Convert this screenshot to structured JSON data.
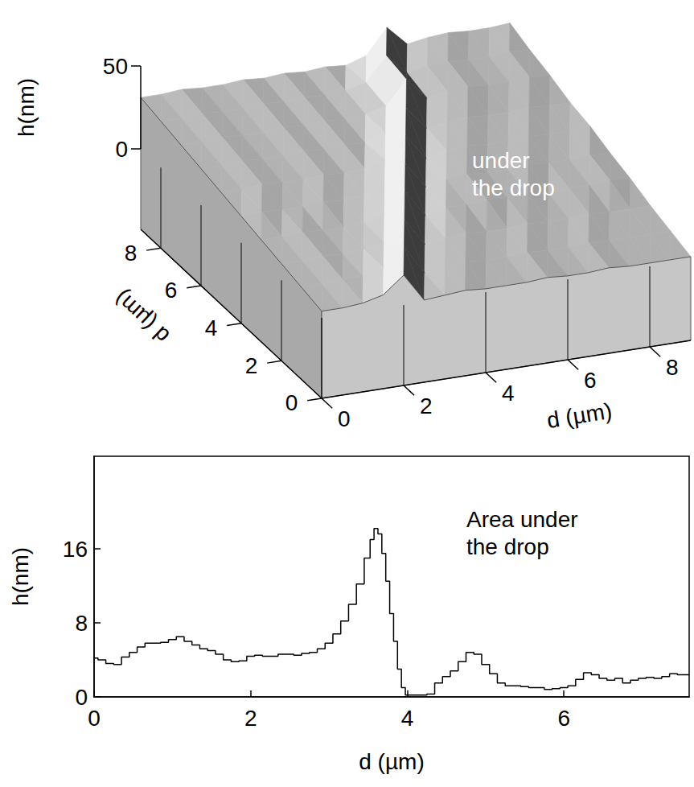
{
  "chart_data": [
    {
      "type": "surface",
      "xlabel": "d (µm)",
      "ylabel": "d (µm)",
      "zlabel": "h(nm)",
      "annotation": "under the drop",
      "x": [
        0,
        0.5,
        1,
        1.5,
        2,
        2.5,
        3,
        3.5,
        4,
        4.5,
        5,
        5.5,
        6,
        6.5,
        7,
        7.5,
        8,
        8.5,
        9
      ],
      "y": [
        0,
        1,
        2,
        3,
        4,
        5,
        6,
        7,
        8,
        9
      ],
      "heights": [
        [
          4,
          4,
          5,
          8,
          18,
          1,
          2,
          3,
          2,
          2,
          2,
          3,
          2,
          2,
          3,
          2,
          2,
          2,
          2
        ],
        [
          7,
          7,
          8,
          8,
          11,
          22,
          4,
          6,
          7,
          6,
          6,
          7,
          6,
          6,
          7,
          6,
          6,
          6,
          6
        ],
        [
          10,
          10,
          11,
          10,
          11,
          13,
          25,
          8,
          10,
          11,
          10,
          10,
          11,
          10,
          10,
          11,
          10,
          10,
          10
        ],
        [
          13,
          13,
          14,
          13,
          13,
          14,
          17,
          29,
          12,
          15,
          15,
          16,
          15,
          15,
          14,
          15,
          15,
          16,
          15
        ],
        [
          16,
          17,
          16,
          16,
          17,
          16,
          17,
          20,
          32,
          16,
          19,
          20,
          19,
          19,
          20,
          19,
          19,
          20,
          19
        ],
        [
          19,
          19,
          20,
          19,
          19,
          20,
          19,
          20,
          23,
          36,
          20,
          23,
          24,
          23,
          23,
          24,
          23,
          23,
          24
        ],
        [
          22,
          22,
          23,
          22,
          22,
          23,
          22,
          23,
          22,
          26,
          39,
          25,
          27,
          28,
          27,
          27,
          28,
          27,
          27
        ],
        [
          25,
          25,
          26,
          25,
          25,
          26,
          25,
          26,
          25,
          26,
          29,
          43,
          30,
          32,
          33,
          32,
          32,
          33,
          32
        ],
        [
          28,
          28,
          29,
          28,
          28,
          29,
          28,
          29,
          28,
          29,
          32,
          46,
          34,
          36,
          37,
          36,
          36,
          37,
          36
        ],
        [
          31,
          31,
          32,
          31,
          31,
          32,
          31,
          32,
          31,
          32,
          31,
          35,
          50,
          38,
          40,
          41,
          40,
          40,
          41
        ]
      ],
      "xlim": [
        0,
        9
      ],
      "ylim": [
        0,
        9
      ],
      "zlim": [
        0,
        50
      ],
      "xticks": [
        0,
        2,
        4,
        6,
        8
      ],
      "yticks": [
        0,
        2,
        4,
        6,
        8
      ],
      "zticks": [
        0,
        50
      ]
    },
    {
      "type": "line",
      "xlabel": "d (µm)",
      "ylabel": "h(nm)",
      "annotation": "Area under the drop",
      "x": [
        0,
        0.1,
        0.2,
        0.3,
        0.4,
        0.5,
        0.6,
        0.7,
        0.8,
        0.9,
        1.0,
        1.1,
        1.2,
        1.3,
        1.4,
        1.5,
        1.6,
        1.7,
        1.8,
        1.9,
        2.0,
        2.1,
        2.2,
        2.3,
        2.4,
        2.5,
        2.6,
        2.7,
        2.8,
        2.9,
        3.0,
        3.1,
        3.2,
        3.3,
        3.4,
        3.5,
        3.55,
        3.6,
        3.65,
        3.7,
        3.75,
        3.8,
        3.85,
        3.9,
        3.95,
        4.0,
        4.1,
        4.2,
        4.3,
        4.4,
        4.5,
        4.6,
        4.7,
        4.8,
        4.9,
        5.0,
        5.1,
        5.2,
        5.3,
        5.4,
        5.5,
        5.6,
        5.7,
        5.8,
        5.9,
        6.0,
        6.1,
        6.2,
        6.3,
        6.4,
        6.5,
        6.6,
        6.7,
        6.8,
        6.9,
        7.0,
        7.1,
        7.2,
        7.3,
        7.4,
        7.5,
        7.6
      ],
      "values": [
        4.2,
        4.0,
        3.6,
        3.5,
        4.3,
        4.8,
        5.4,
        5.8,
        5.8,
        5.9,
        6.2,
        6.5,
        6.0,
        5.6,
        5.2,
        5.0,
        4.6,
        4.0,
        3.8,
        3.9,
        4.4,
        4.5,
        4.4,
        4.4,
        4.6,
        4.6,
        4.5,
        4.7,
        4.8,
        5.2,
        5.8,
        6.8,
        8.2,
        10.0,
        12.2,
        15.0,
        17.0,
        18.2,
        17.6,
        15.5,
        12.5,
        9.0,
        6.0,
        3.0,
        1.0,
        0.2,
        0.2,
        0.2,
        0.3,
        1.5,
        2.2,
        2.8,
        3.8,
        4.8,
        4.6,
        3.5,
        2.5,
        1.5,
        1.2,
        1.2,
        1.1,
        1.0,
        1.0,
        0.8,
        0.9,
        1.0,
        1.2,
        1.9,
        2.6,
        2.4,
        2.0,
        1.8,
        2.0,
        1.5,
        1.8,
        2.0,
        2.1,
        2.0,
        2.2,
        2.5,
        2.4,
        2.4
      ],
      "xlim": [
        0,
        7.6
      ],
      "ylim": [
        0,
        26
      ],
      "xticks": [
        0,
        2,
        4,
        6
      ],
      "yticks": [
        0,
        8,
        16
      ],
      "color": "#000000",
      "line_style": "step",
      "grid": false
    }
  ]
}
